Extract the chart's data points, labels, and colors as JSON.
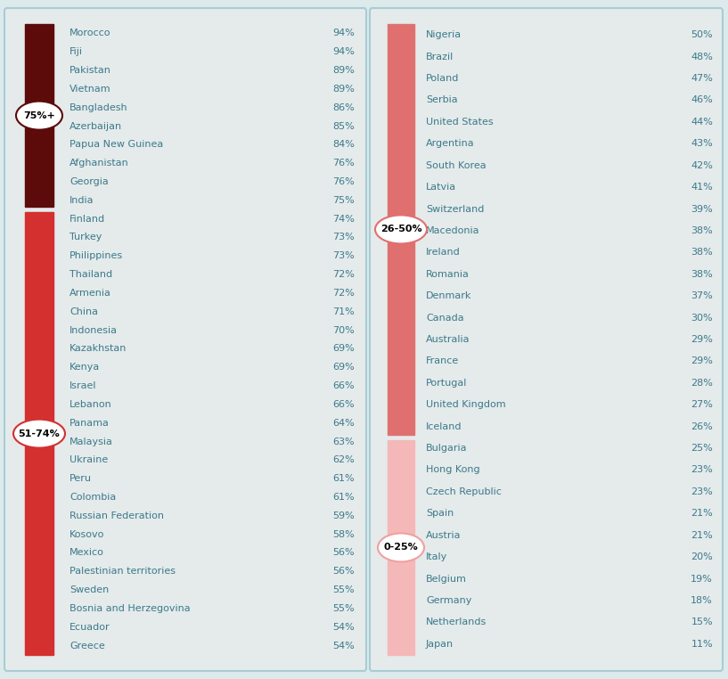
{
  "left_countries": [
    [
      "Morocco",
      "94%"
    ],
    [
      "Fiji",
      "94%"
    ],
    [
      "Pakistan",
      "89%"
    ],
    [
      "Vietnam",
      "89%"
    ],
    [
      "Bangladesh",
      "86%"
    ],
    [
      "Azerbaijan",
      "85%"
    ],
    [
      "Papua New Guinea",
      "84%"
    ],
    [
      "Afghanistan",
      "76%"
    ],
    [
      "Georgia",
      "76%"
    ],
    [
      "India",
      "75%"
    ],
    [
      "Finland",
      "74%"
    ],
    [
      "Turkey",
      "73%"
    ],
    [
      "Philippines",
      "73%"
    ],
    [
      "Thailand",
      "72%"
    ],
    [
      "Armenia",
      "72%"
    ],
    [
      "China",
      "71%"
    ],
    [
      "Indonesia",
      "70%"
    ],
    [
      "Kazakhstan",
      "69%"
    ],
    [
      "Kenya",
      "69%"
    ],
    [
      "Israel",
      "66%"
    ],
    [
      "Lebanon",
      "66%"
    ],
    [
      "Panama",
      "64%"
    ],
    [
      "Malaysia",
      "63%"
    ],
    [
      "Ukraine",
      "62%"
    ],
    [
      "Peru",
      "61%"
    ],
    [
      "Colombia",
      "61%"
    ],
    [
      "Russian Federation",
      "59%"
    ],
    [
      "Kosovo",
      "58%"
    ],
    [
      "Mexico",
      "56%"
    ],
    [
      "Palestinian territories",
      "56%"
    ],
    [
      "Sweden",
      "55%"
    ],
    [
      "Bosnia and Herzegovina",
      "55%"
    ],
    [
      "Ecuador",
      "54%"
    ],
    [
      "Greece",
      "54%"
    ]
  ],
  "right_countries": [
    [
      "Nigeria",
      "50%"
    ],
    [
      "Brazil",
      "48%"
    ],
    [
      "Poland",
      "47%"
    ],
    [
      "Serbia",
      "46%"
    ],
    [
      "United States",
      "44%"
    ],
    [
      "Argentina",
      "43%"
    ],
    [
      "South Korea",
      "42%"
    ],
    [
      "Latvia",
      "41%"
    ],
    [
      "Switzerland",
      "39%"
    ],
    [
      "Macedonia",
      "38%"
    ],
    [
      "Ireland",
      "38%"
    ],
    [
      "Romania",
      "38%"
    ],
    [
      "Denmark",
      "37%"
    ],
    [
      "Canada",
      "30%"
    ],
    [
      "Australia",
      "29%"
    ],
    [
      "France",
      "29%"
    ],
    [
      "Portugal",
      "28%"
    ],
    [
      "United Kingdom",
      "27%"
    ],
    [
      "Iceland",
      "26%"
    ],
    [
      "Bulgaria",
      "25%"
    ],
    [
      "Hong Kong",
      "23%"
    ],
    [
      "Czech Republic",
      "23%"
    ],
    [
      "Spain",
      "21%"
    ],
    [
      "Austria",
      "21%"
    ],
    [
      "Italy",
      "20%"
    ],
    [
      "Belgium",
      "19%"
    ],
    [
      "Germany",
      "18%"
    ],
    [
      "Netherlands",
      "15%"
    ],
    [
      "Japan",
      "11%"
    ]
  ],
  "n_dark": 10,
  "n_red": 24,
  "n_salmon": 19,
  "n_pink": 10,
  "color_dark": "#5c0a0a",
  "color_red": "#d43030",
  "color_salmon": "#e07070",
  "color_pink": "#f5b8b8",
  "bg_color": "#ddeaec",
  "panel_color": "#e5eaeb",
  "panel_border": "#a8cdd4",
  "text_color": "#3a7a8a",
  "badge_border_dark": "#5c0a0a",
  "badge_border_red": "#d43030",
  "badge_border_salmon": "#e07070",
  "badge_border_pink": "#f0a0a0"
}
